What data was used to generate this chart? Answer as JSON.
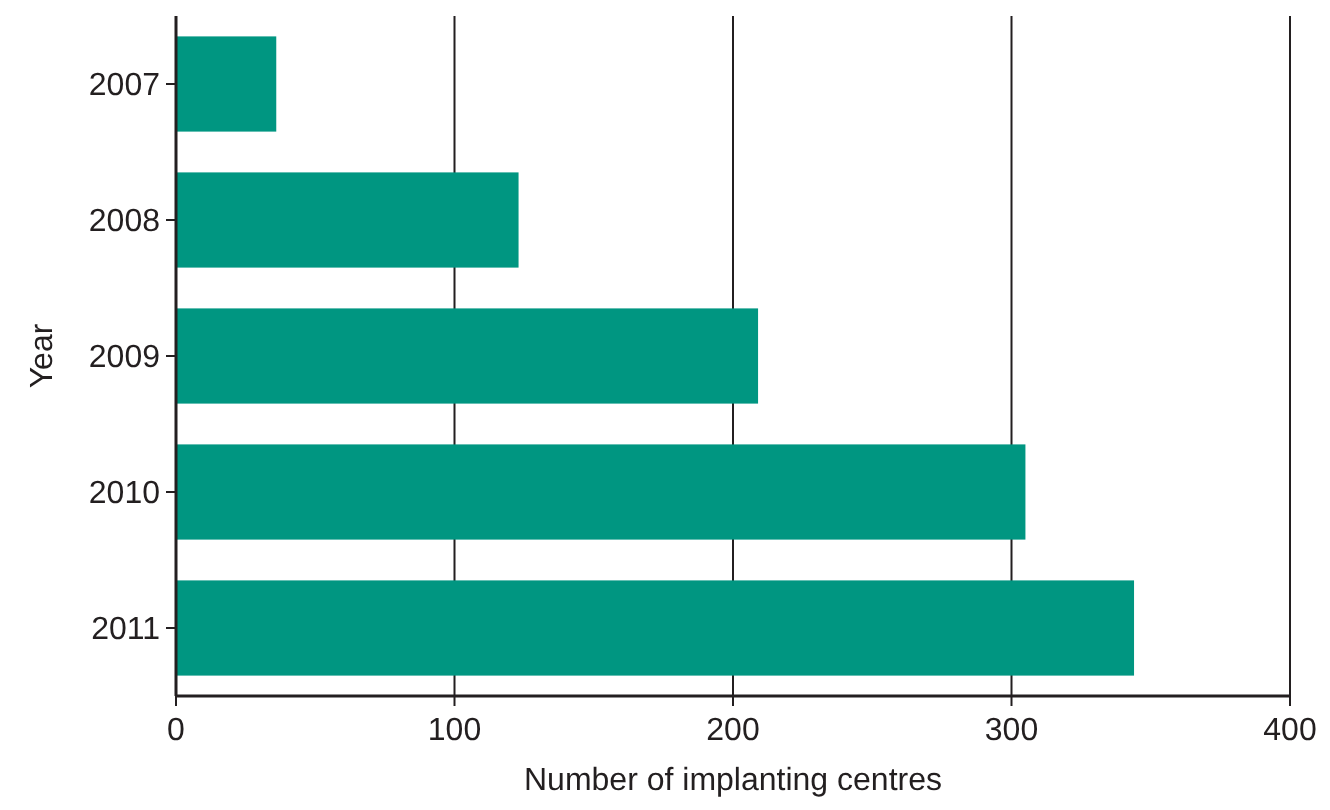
{
  "chart_data": {
    "type": "bar",
    "orientation": "horizontal",
    "xlabel": "Number of implanting centres",
    "ylabel": "Year",
    "categories": [
      "2007",
      "2008",
      "2009",
      "2010",
      "2011"
    ],
    "values": [
      36,
      123,
      209,
      305,
      344
    ],
    "color": "#009681",
    "xlim": [
      0,
      400
    ],
    "xticks": [
      0,
      100,
      200,
      300,
      400
    ],
    "grid": "x"
  }
}
